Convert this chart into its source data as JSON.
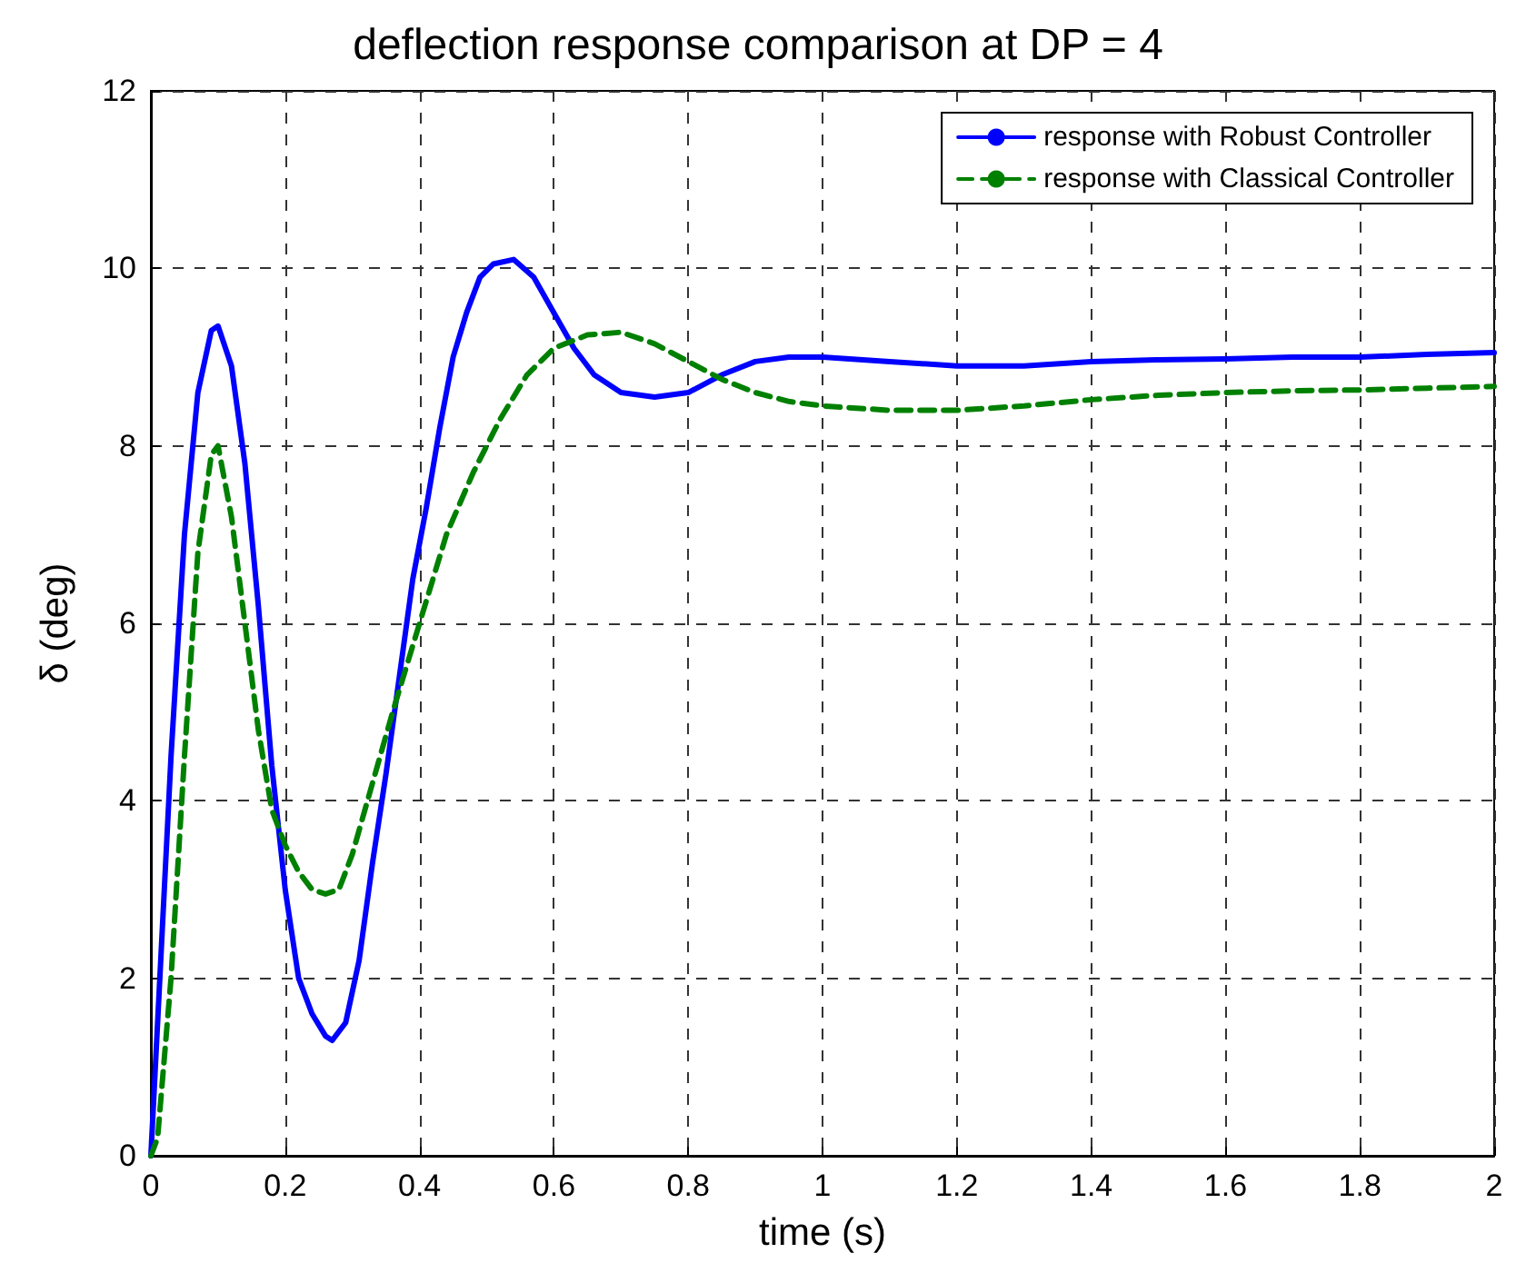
{
  "chart_data": {
    "type": "line",
    "title": "deflection response comparison at DP = 4",
    "xlabel": "time (s)",
    "ylabel": "δ (deg)",
    "xlim": [
      0,
      2
    ],
    "xticks": [
      0,
      0.2,
      0.4,
      0.6,
      0.8,
      1,
      1.2,
      1.4,
      1.6,
      1.8,
      2
    ],
    "ylim": [
      0,
      12
    ],
    "yticks": [
      0,
      2,
      4,
      6,
      8,
      10,
      12
    ],
    "grid": true,
    "legend": "top right",
    "marker": "none",
    "series": [
      {
        "name": "response with Robust Controller",
        "color": "#0000ff",
        "line_style": "solid",
        "x": [
          0,
          0.01,
          0.03,
          0.05,
          0.07,
          0.09,
          0.1,
          0.12,
          0.14,
          0.16,
          0.18,
          0.2,
          0.22,
          0.24,
          0.26,
          0.27,
          0.29,
          0.31,
          0.33,
          0.35,
          0.37,
          0.39,
          0.41,
          0.43,
          0.45,
          0.47,
          0.49,
          0.51,
          0.54,
          0.57,
          0.6,
          0.63,
          0.66,
          0.7,
          0.75,
          0.8,
          0.85,
          0.9,
          0.95,
          1.0,
          1.1,
          1.2,
          1.3,
          1.4,
          1.5,
          1.6,
          1.7,
          1.8,
          1.9,
          2.0
        ],
        "values": [
          0,
          1.5,
          4.5,
          7,
          8.6,
          9.3,
          9.35,
          8.9,
          7.8,
          6.2,
          4.4,
          3.0,
          2.0,
          1.6,
          1.35,
          1.3,
          1.5,
          2.2,
          3.3,
          4.3,
          5.4,
          6.5,
          7.3,
          8.2,
          9.0,
          9.5,
          9.9,
          10.05,
          10.1,
          9.9,
          9.5,
          9.1,
          8.8,
          8.6,
          8.55,
          8.6,
          8.8,
          8.95,
          9.0,
          9.0,
          8.95,
          8.9,
          8.9,
          8.95,
          8.97,
          8.98,
          9.0,
          9.0,
          9.03,
          9.05
        ]
      },
      {
        "name": "response with Classical Controller",
        "color": "#008000",
        "line_style": "dashed",
        "x": [
          0,
          0.01,
          0.03,
          0.05,
          0.07,
          0.09,
          0.1,
          0.12,
          0.14,
          0.16,
          0.18,
          0.2,
          0.22,
          0.24,
          0.26,
          0.28,
          0.3,
          0.33,
          0.36,
          0.4,
          0.44,
          0.48,
          0.52,
          0.56,
          0.6,
          0.65,
          0.7,
          0.75,
          0.8,
          0.85,
          0.9,
          0.95,
          1.0,
          1.1,
          1.2,
          1.3,
          1.4,
          1.5,
          1.6,
          1.7,
          1.8,
          1.9,
          2.0
        ],
        "values": [
          0,
          0.2,
          2,
          4.5,
          6.8,
          7.9,
          8.0,
          7.2,
          6.0,
          4.8,
          3.9,
          3.5,
          3.2,
          3.0,
          2.95,
          3.0,
          3.4,
          4.2,
          5.0,
          6.0,
          7.0,
          7.7,
          8.3,
          8.8,
          9.1,
          9.25,
          9.28,
          9.15,
          8.95,
          8.75,
          8.6,
          8.5,
          8.45,
          8.4,
          8.4,
          8.45,
          8.52,
          8.57,
          8.6,
          8.62,
          8.63,
          8.65,
          8.67
        ]
      }
    ]
  }
}
